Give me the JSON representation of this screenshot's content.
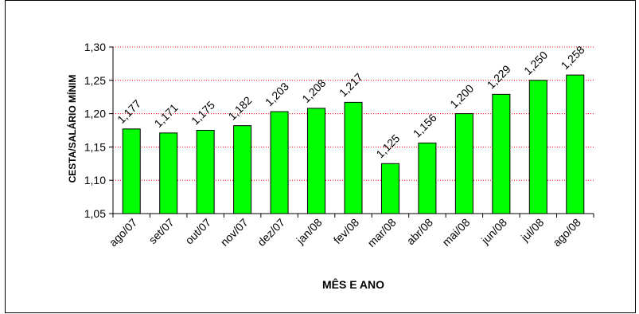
{
  "chart_data": {
    "type": "bar",
    "categories": [
      "ago/07",
      "set/07",
      "out/07",
      "nov/07",
      "dez/07",
      "jan/08",
      "fev/08",
      "mar/08",
      "abr/08",
      "mai/08",
      "jun/08",
      "jul/08",
      "ago/08"
    ],
    "values": [
      1.177,
      1.171,
      1.175,
      1.182,
      1.203,
      1.208,
      1.217,
      1.125,
      1.156,
      1.2,
      1.229,
      1.25,
      1.258
    ],
    "data_labels": [
      "1,177",
      "1,171",
      "1,175",
      "1,182",
      "1,203",
      "1,208",
      "1,217",
      "1,125",
      "1,156",
      "1,200",
      "1,229",
      "1,250",
      "1,258"
    ],
    "xlabel": "MÊS E ANO",
    "ylabel": "CESTA/SALÁRIO MÍNIM",
    "ylim": [
      1.05,
      1.3
    ],
    "yticks": [
      1.05,
      1.1,
      1.15,
      1.2,
      1.25,
      1.3
    ],
    "ytick_labels": [
      "1,05",
      "1,10",
      "1,15",
      "1,20",
      "1,25",
      "1,30"
    ],
    "grid": "horizontal dotted",
    "legend": "none",
    "colors": {
      "bar_fill": "#00ff00",
      "bar_stroke": "#000000",
      "grid": "#ff0000"
    }
  }
}
